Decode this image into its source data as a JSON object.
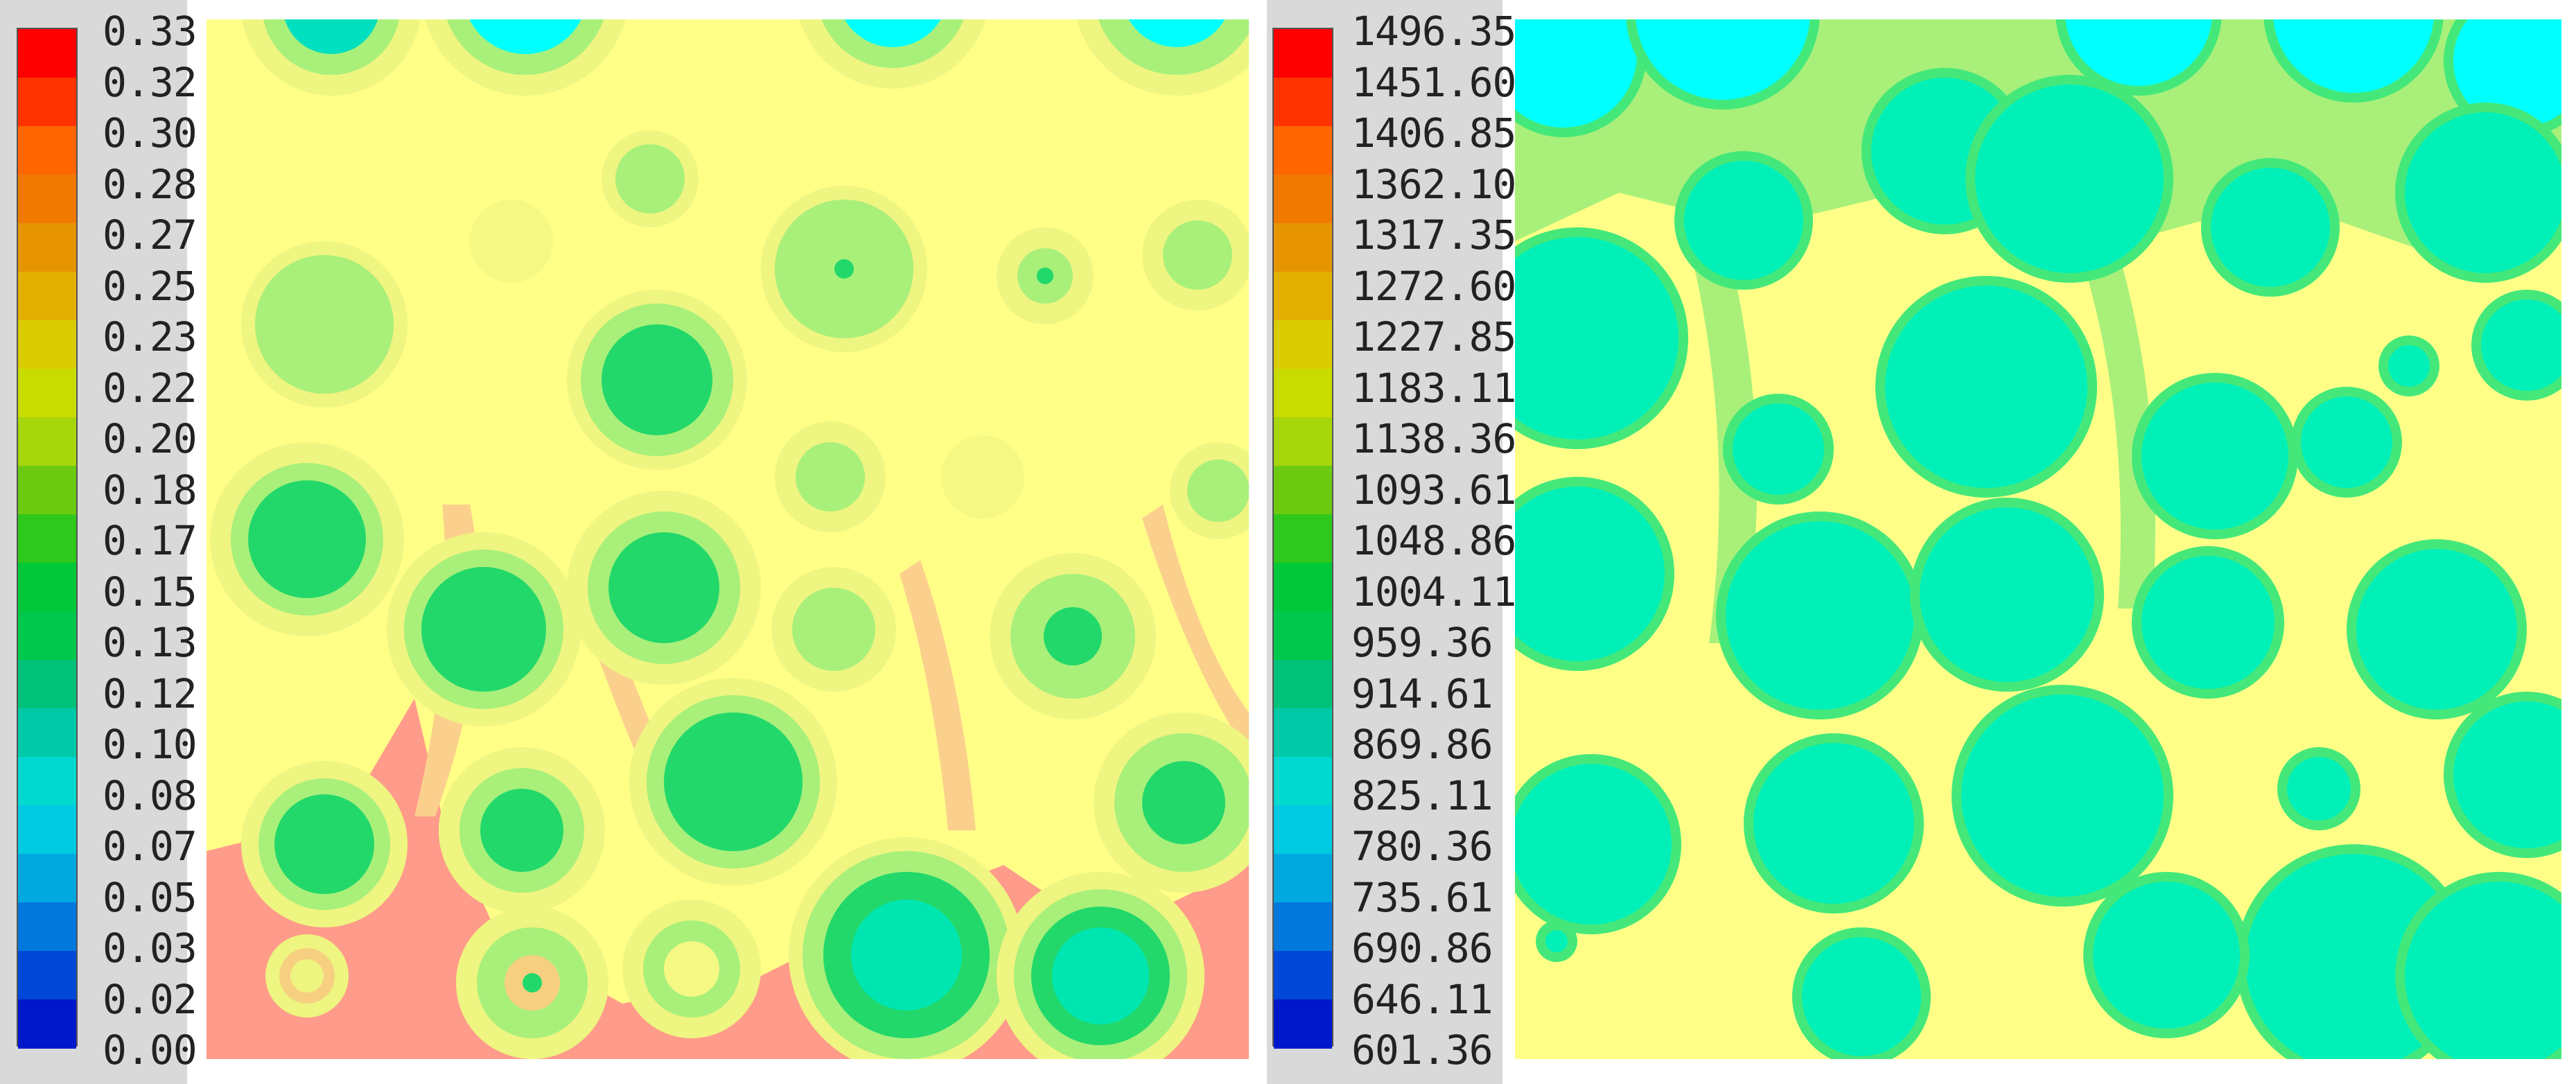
{
  "legends": [
    {
      "labels": [
        "0.33",
        "0.32",
        "0.30",
        "0.28",
        "0.27",
        "0.25",
        "0.23",
        "0.22",
        "0.20",
        "0.18",
        "0.17",
        "0.15",
        "0.13",
        "0.12",
        "0.10",
        "0.08",
        "0.07",
        "0.05",
        "0.03",
        "0.02",
        "0.00"
      ]
    },
    {
      "labels": [
        "1496.35",
        "1451.60",
        "1406.85",
        "1362.10",
        "1317.35",
        "1272.60",
        "1227.85",
        "1183.11",
        "1138.36",
        "1093.61",
        "1048.86",
        "1004.11",
        "959.36",
        "914.61",
        "869.86",
        "825.11",
        "780.36",
        "735.61",
        "690.86",
        "646.11",
        "601.36"
      ]
    }
  ],
  "colormap": [
    "#ff0000",
    "#ff3300",
    "#ff6600",
    "#f07a00",
    "#e69500",
    "#e3b000",
    "#d9cc00",
    "#c9dc00",
    "#a7d60a",
    "#6ccb10",
    "#2fc81c",
    "#00c83a",
    "#00c84c",
    "#00c27a",
    "#00c9a8",
    "#00d8d0",
    "#00c9e2",
    "#00a8e0",
    "#0078dc",
    "#0048d8",
    "#0018cc"
  ],
  "left_field": {
    "background": "#ffff88",
    "hot_zone": "#ff9b8a",
    "warm_zone": "#fbd08d"
  },
  "right_field": {
    "background": "#ffff88",
    "particle_shell": "#44e87a",
    "particle_core": "#00f0b8",
    "cyan_core": "#00ffff"
  }
}
